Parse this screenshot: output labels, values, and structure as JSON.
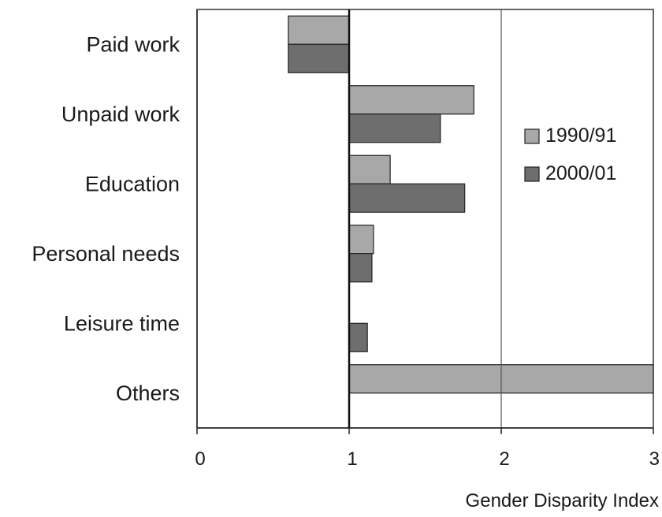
{
  "chart_data": {
    "type": "bar",
    "orientation": "horizontal",
    "baseline": 1,
    "categories": [
      "Paid work",
      "Unpaid work",
      "Education",
      "Personal needs",
      "Leisure time",
      "Others"
    ],
    "series": [
      {
        "name": "1990/91",
        "color": "#a8a8a8",
        "values": [
          0.6,
          1.82,
          1.27,
          1.16,
          null,
          3.0
        ]
      },
      {
        "name": "2000/01",
        "color": "#6e6e6e",
        "values": [
          0.6,
          1.6,
          1.76,
          1.15,
          1.12,
          null
        ]
      }
    ],
    "xlabel": "Gender Disparity Index",
    "ylabel": "",
    "xlim": [
      0,
      3
    ],
    "xticks": [
      "0",
      "1",
      "2",
      "3"
    ],
    "reference_lines": [
      1,
      2
    ],
    "grid": false,
    "legend_position": "right"
  }
}
